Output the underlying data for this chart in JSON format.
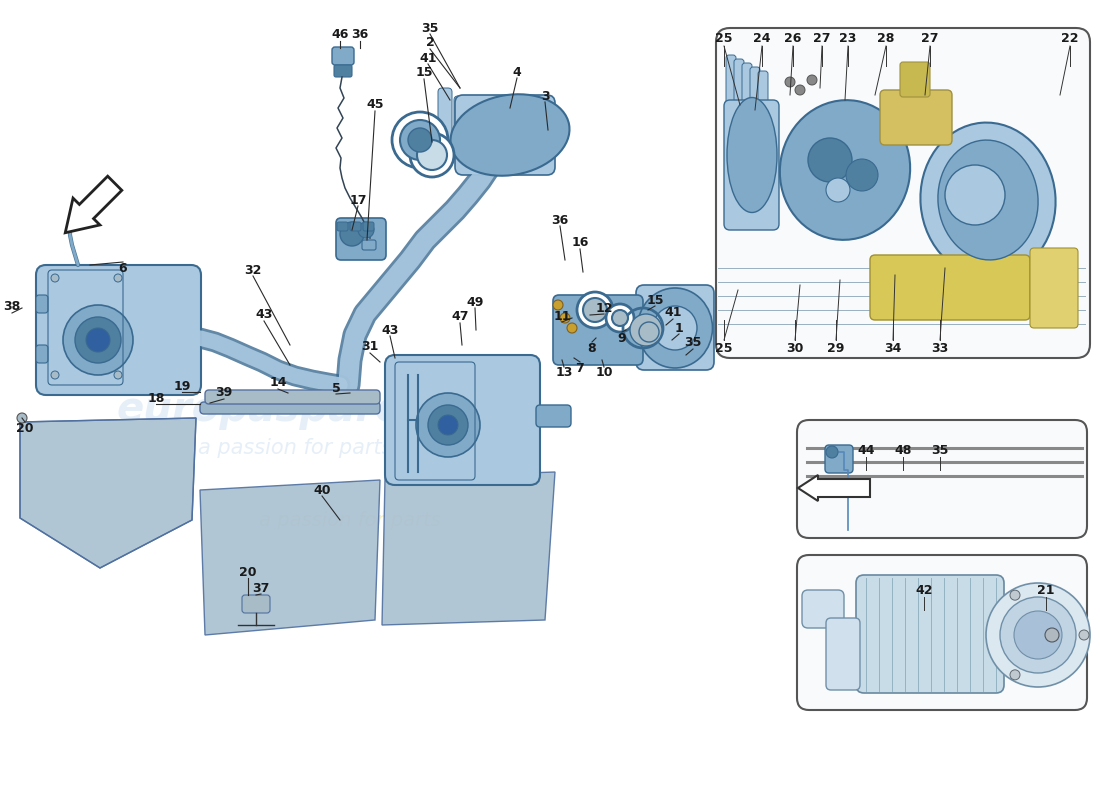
{
  "bg": "#ffffff",
  "pc1": "#aac8e0",
  "pc2": "#80aac8",
  "pc3": "#5080a0",
  "ec": "#3a6a90",
  "lc": "#1a1a1a",
  "gray1": "#a8bcc8",
  "gray2": "#c8dce8",
  "inset_bg": "#f8fafc",
  "inset_ec": "#555555",
  "wm_c": "#c8ddf0",
  "wm_y": "#ddd060",
  "figsize": [
    11.0,
    8.0
  ],
  "dpi": 100,
  "arrow_fc": "#ffffff",
  "arrow_ec": "#222222",
  "label_fs": 9,
  "main_labels": [
    [
      350,
      38,
      "46"
    ],
    [
      368,
      38,
      "36"
    ],
    [
      430,
      38,
      "35"
    ],
    [
      430,
      55,
      "2"
    ],
    [
      428,
      70,
      "41"
    ],
    [
      424,
      85,
      "15"
    ],
    [
      380,
      115,
      "45"
    ],
    [
      362,
      200,
      "17"
    ],
    [
      520,
      75,
      "4"
    ],
    [
      548,
      100,
      "3"
    ],
    [
      123,
      280,
      "6"
    ],
    [
      258,
      275,
      "32"
    ],
    [
      268,
      318,
      "43"
    ],
    [
      480,
      305,
      "49"
    ],
    [
      464,
      320,
      "47"
    ],
    [
      395,
      332,
      "43"
    ],
    [
      375,
      350,
      "31"
    ],
    [
      565,
      222,
      "36"
    ],
    [
      585,
      245,
      "16"
    ],
    [
      660,
      302,
      "15"
    ],
    [
      678,
      315,
      "41"
    ],
    [
      684,
      330,
      "1"
    ],
    [
      698,
      345,
      "35"
    ],
    [
      282,
      385,
      "14"
    ],
    [
      340,
      390,
      "5"
    ],
    [
      186,
      388,
      "19"
    ],
    [
      160,
      400,
      "18"
    ],
    [
      228,
      395,
      "39"
    ],
    [
      28,
      430,
      "20"
    ],
    [
      14,
      308,
      "38"
    ],
    [
      252,
      575,
      "20"
    ],
    [
      265,
      590,
      "37"
    ],
    [
      326,
      492,
      "40"
    ],
    [
      608,
      310,
      "12"
    ],
    [
      565,
      318,
      "11"
    ],
    [
      626,
      340,
      "9"
    ],
    [
      596,
      350,
      "8"
    ],
    [
      584,
      370,
      "7"
    ],
    [
      567,
      375,
      "13"
    ],
    [
      608,
      375,
      "10"
    ]
  ],
  "inset1_labels": [
    [
      724,
      38,
      "25"
    ],
    [
      762,
      38,
      "24"
    ],
    [
      793,
      38,
      "26"
    ],
    [
      822,
      38,
      "27"
    ],
    [
      848,
      38,
      "23"
    ],
    [
      886,
      38,
      "28"
    ],
    [
      930,
      38,
      "27"
    ],
    [
      1070,
      38,
      "22"
    ],
    [
      724,
      348,
      "25"
    ],
    [
      795,
      348,
      "30"
    ],
    [
      836,
      348,
      "29"
    ],
    [
      893,
      348,
      "34"
    ],
    [
      940,
      348,
      "33"
    ]
  ],
  "inset2_labels": [
    [
      866,
      450,
      "44"
    ],
    [
      903,
      450,
      "48"
    ],
    [
      940,
      450,
      "35"
    ]
  ],
  "inset3_labels": [
    [
      924,
      590,
      "42"
    ],
    [
      1046,
      590,
      "21"
    ]
  ]
}
